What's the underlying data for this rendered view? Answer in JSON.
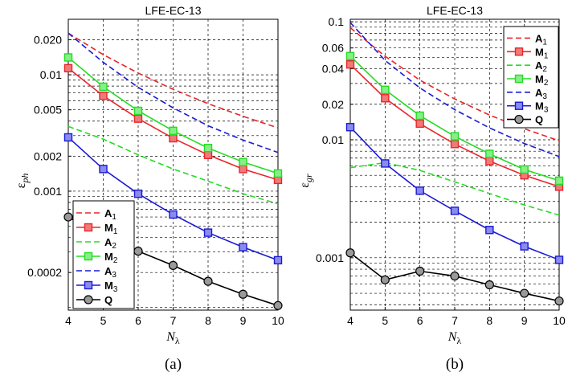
{
  "chart_data": [
    {
      "type": "line",
      "panel": "(a)",
      "title": "LFE-EC-13",
      "xlabel": "N",
      "xlabel_sub": "λ",
      "ylabel": "ε",
      "ylabel_sub": "ph",
      "yscale": "log",
      "xlim": [
        4,
        10
      ],
      "ylim": [
        9.5e-05,
        0.03
      ],
      "x": [
        4,
        5,
        6,
        7,
        8,
        9,
        10
      ],
      "xticks": [
        "4",
        "5",
        "6",
        "7",
        "8",
        "9",
        "10"
      ],
      "yticks": [
        {
          "v": 0.02,
          "label": "0.020"
        },
        {
          "v": 0.01,
          "label": "0.01"
        },
        {
          "v": 0.005,
          "label": "0.005"
        },
        {
          "v": 0.002,
          "label": "0.002"
        },
        {
          "v": 0.001,
          "label": "0.001"
        },
        {
          "v": 0.0002,
          "label": "0.0002"
        }
      ],
      "legend_position": "bottom-left",
      "series": [
        {
          "name": "A",
          "sub": "1",
          "color": "#e8262b",
          "style": "dashed",
          "marker": "none",
          "values": [
            0.0228,
            0.0149,
            0.01035,
            0.0075,
            0.00565,
            0.0044,
            0.0035
          ]
        },
        {
          "name": "M",
          "sub": "1",
          "color": "#e8262b",
          "style": "solid",
          "marker": "square",
          "values": [
            0.0114,
            0.0066,
            0.0042,
            0.00285,
            0.00205,
            0.00155,
            0.00125
          ]
        },
        {
          "name": "A",
          "sub": "2",
          "color": "#22dd22",
          "style": "dashed",
          "marker": "none",
          "values": [
            0.0036,
            0.0028,
            0.00205,
            0.00155,
            0.00122,
            0.00095,
            0.00078
          ]
        },
        {
          "name": "M",
          "sub": "2",
          "color": "#22dd22",
          "style": "solid",
          "marker": "square",
          "values": [
            0.0141,
            0.0079,
            0.0049,
            0.0033,
            0.00235,
            0.00178,
            0.00142
          ]
        },
        {
          "name": "A",
          "sub": "3",
          "color": "#1a1ad6",
          "style": "dashed",
          "marker": "none",
          "values": [
            0.0228,
            0.0128,
            0.0078,
            0.0052,
            0.00365,
            0.00275,
            0.00215
          ]
        },
        {
          "name": "M",
          "sub": "3",
          "color": "#1a1ad6",
          "style": "solid",
          "marker": "square",
          "values": [
            0.0029,
            0.00155,
            0.00095,
            0.00063,
            0.00044,
            0.00033,
            0.000255
          ]
        },
        {
          "name": "Q",
          "sub": "",
          "color": "#000000",
          "style": "solid",
          "marker": "circle",
          "values": [
            0.0006,
            0.0004,
            0.000305,
            0.00023,
            0.000168,
            0.00013,
            0.000104
          ]
        }
      ]
    },
    {
      "type": "line",
      "panel": "(b)",
      "title": "LFE-EC-13",
      "xlabel": "N",
      "xlabel_sub": "λ",
      "ylabel": "ε",
      "ylabel_sub": "gr",
      "yscale": "log",
      "xlim": [
        4,
        10
      ],
      "ylim": [
        0.00036,
        0.105
      ],
      "x": [
        4,
        5,
        6,
        7,
        8,
        9,
        10
      ],
      "xticks": [
        "4",
        "5",
        "6",
        "7",
        "8",
        "9",
        "10"
      ],
      "yticks": [
        {
          "v": 0.1,
          "label": "0.1"
        },
        {
          "v": 0.06,
          "label": "0.06"
        },
        {
          "v": 0.04,
          "label": "0.04"
        },
        {
          "v": 0.02,
          "label": "0.02"
        },
        {
          "v": 0.01,
          "label": "0.01"
        },
        {
          "v": 0.001,
          "label": "0.001"
        }
      ],
      "legend_position": "top-right",
      "series": [
        {
          "name": "A",
          "sub": "1",
          "color": "#e8262b",
          "style": "dashed",
          "marker": "none",
          "values": [
            0.089,
            0.051,
            0.032,
            0.0222,
            0.0162,
            0.0124,
            0.0098
          ]
        },
        {
          "name": "M",
          "sub": "1",
          "color": "#e8262b",
          "style": "solid",
          "marker": "square",
          "values": [
            0.0435,
            0.0225,
            0.0137,
            0.0092,
            0.0066,
            0.005,
            0.004
          ]
        },
        {
          "name": "A",
          "sub": "2",
          "color": "#22dd22",
          "style": "dashed",
          "marker": "none",
          "values": [
            0.0058,
            0.0064,
            0.0055,
            0.0044,
            0.0035,
            0.0028,
            0.0023
          ]
        },
        {
          "name": "M",
          "sub": "2",
          "color": "#22dd22",
          "style": "solid",
          "marker": "square",
          "values": [
            0.0512,
            0.0265,
            0.016,
            0.0107,
            0.0076,
            0.0056,
            0.0045
          ]
        },
        {
          "name": "A",
          "sub": "3",
          "color": "#1a1ad6",
          "style": "dashed",
          "marker": "none",
          "values": [
            0.0985,
            0.047,
            0.0275,
            0.018,
            0.0126,
            0.0093,
            0.0072
          ]
        },
        {
          "name": "M",
          "sub": "3",
          "color": "#1a1ad6",
          "style": "solid",
          "marker": "square",
          "values": [
            0.0128,
            0.0063,
            0.0037,
            0.0025,
            0.00172,
            0.00125,
            0.00096
          ]
        },
        {
          "name": "Q",
          "sub": "",
          "color": "#000000",
          "style": "solid",
          "marker": "circle",
          "values": [
            0.0011,
            0.00065,
            0.00077,
            0.0007,
            0.00059,
            0.0005,
            0.00043
          ]
        }
      ]
    }
  ]
}
